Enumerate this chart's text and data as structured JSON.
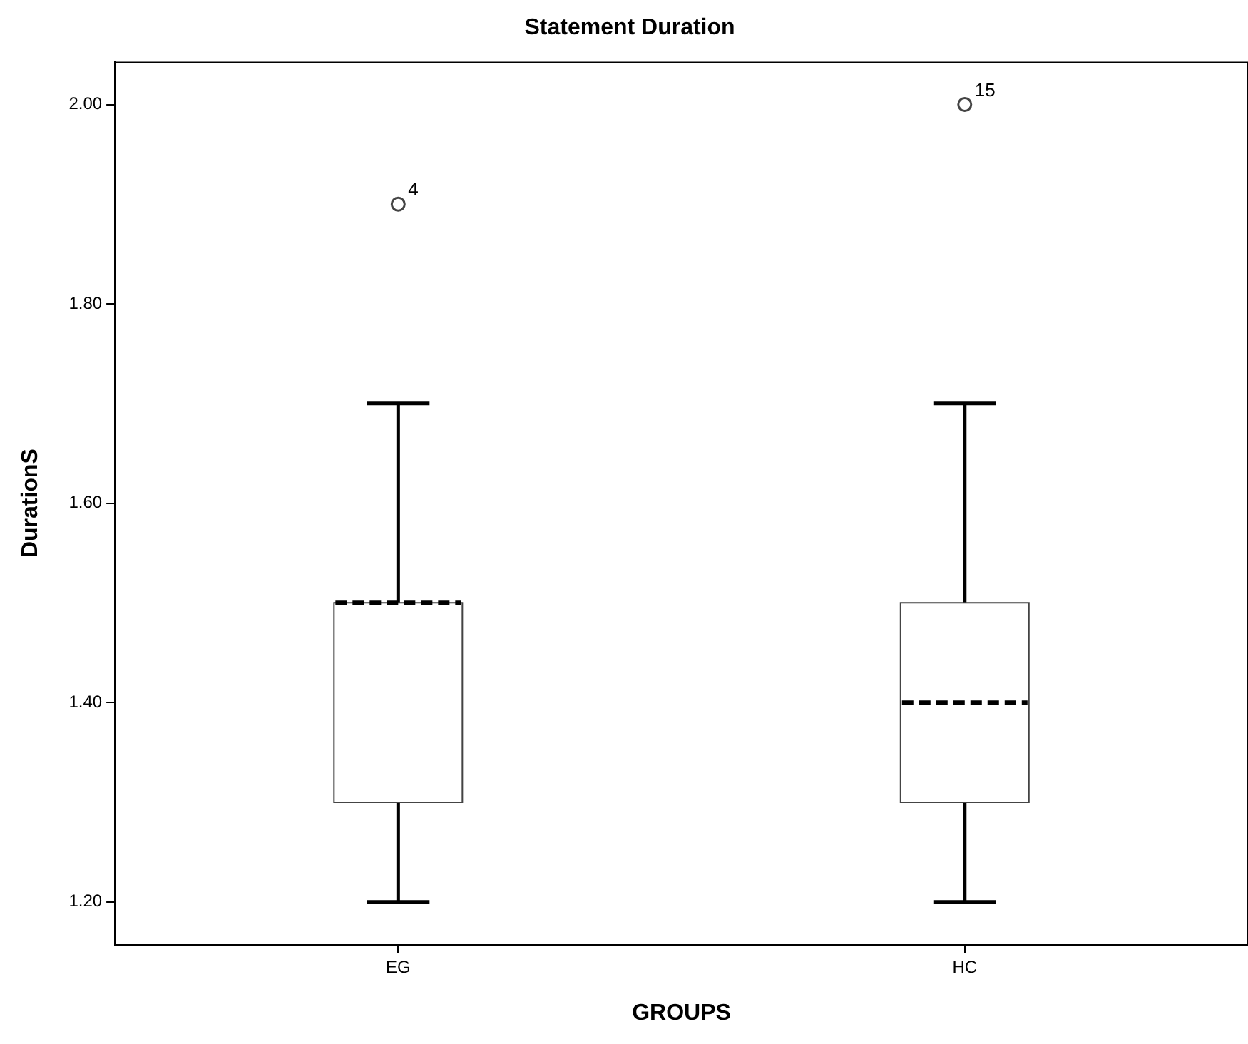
{
  "chart_data": {
    "type": "box",
    "title": "Statement Duration",
    "xlabel": "GROUPS",
    "ylabel": "DurationS",
    "categories": [
      "EG",
      "HC"
    ],
    "boxes": [
      {
        "low": 1.2,
        "q1": 1.3,
        "median": 1.5,
        "q3": 1.5,
        "high": 1.7,
        "outliers": [
          1.9
        ]
      },
      {
        "low": 1.2,
        "q1": 1.3,
        "median": 1.4,
        "q3": 1.5,
        "high": 1.7,
        "outliers": [
          2.0
        ]
      }
    ],
    "ylim": [
      1.157,
      2.043
    ],
    "yticks": [
      {
        "value": 1.2,
        "label": "1.20"
      },
      {
        "value": 1.4,
        "label": "1.40"
      },
      {
        "value": 1.6,
        "label": "1.60"
      },
      {
        "value": 1.8,
        "label": "1.80"
      },
      {
        "value": 2.0,
        "label": "2.00"
      }
    ],
    "line_style": "dashed",
    "annotations": [
      "4",
      "15"
    ]
  }
}
